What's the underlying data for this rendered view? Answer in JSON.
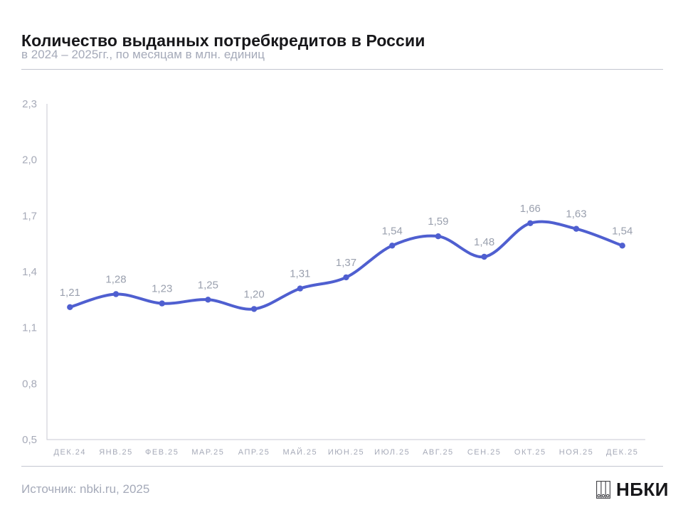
{
  "header": {
    "title": "Количество выданных потребкредитов в России",
    "subtitle": "в 2024 – 2025гг., по месяцам в млн. единиц"
  },
  "chart_data": {
    "type": "line",
    "title": "Количество выданных потребкредитов в России",
    "subtitle": "в 2024 – 2025гг., по месяцам в млн. единиц",
    "unit": "млн. единиц",
    "categories": [
      "ДЕК.24",
      "ЯНВ.25",
      "ФЕВ.25",
      "МАР.25",
      "АПР.25",
      "МАЙ.25",
      "ИЮН.25",
      "ИЮЛ.25",
      "АВГ.25",
      "СЕН.25",
      "ОКТ.25",
      "НОЯ.25",
      "ДЕК.25"
    ],
    "values": [
      1.21,
      1.28,
      1.23,
      1.25,
      1.2,
      1.31,
      1.37,
      1.54,
      1.59,
      1.48,
      1.66,
      1.63,
      1.54
    ],
    "value_labels": [
      "1,21",
      "1,28",
      "1,23",
      "1,25",
      "1,20",
      "1,31",
      "1,37",
      "1,54",
      "1,59",
      "1,48",
      "1,66",
      "1,63",
      "1,54"
    ],
    "ylim": [
      0.5,
      2.3
    ],
    "ytick_values": [
      0.5,
      0.8,
      1.1,
      1.4,
      1.7,
      2.0,
      2.3
    ],
    "ytick_labels": [
      "0,5",
      "0,8",
      "1,1",
      "1,4",
      "1,7",
      "2,0",
      "2,3"
    ],
    "grid": false,
    "legend": "none",
    "marker": "circle",
    "smooth": true,
    "colors": {
      "line": "#4f5fd0",
      "marker": "#4f5fd0",
      "value_label": "#9aa0ae",
      "axis_label": "#a6aab8",
      "spine": "#c8cad3"
    }
  },
  "footer": {
    "source": "Источник: nbki.ru, 2025",
    "logo_text": "НБКИ",
    "logo_icon": "nbki-columns-icon"
  }
}
